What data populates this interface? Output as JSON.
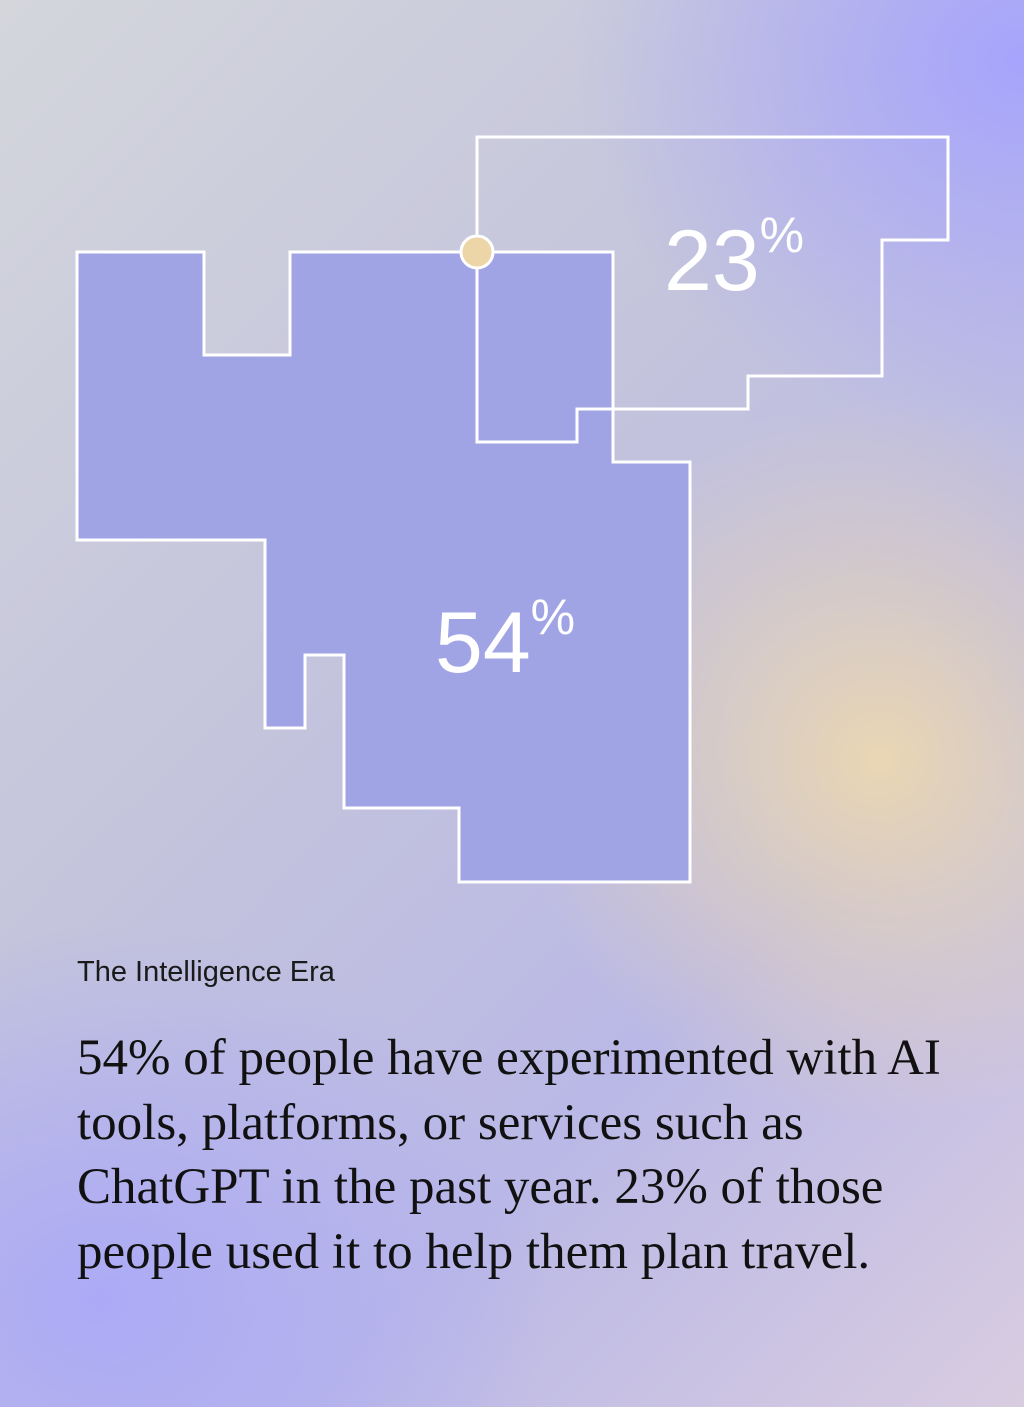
{
  "diagram": {
    "primary_value_label": "54",
    "secondary_value_label": "23",
    "percent_sign": "%",
    "primary_value": 54,
    "secondary_value": 23,
    "colors": {
      "primary_fill": "#a1a4e4",
      "outline": "#ffffff",
      "marker": "#ecd6a8"
    }
  },
  "caption": {
    "kicker": "The Intelligence Era",
    "body": "54% of people have experimented with AI tools, platforms, or services such as ChatGPT in the past year. 23% of those people used it to help them plan travel."
  }
}
